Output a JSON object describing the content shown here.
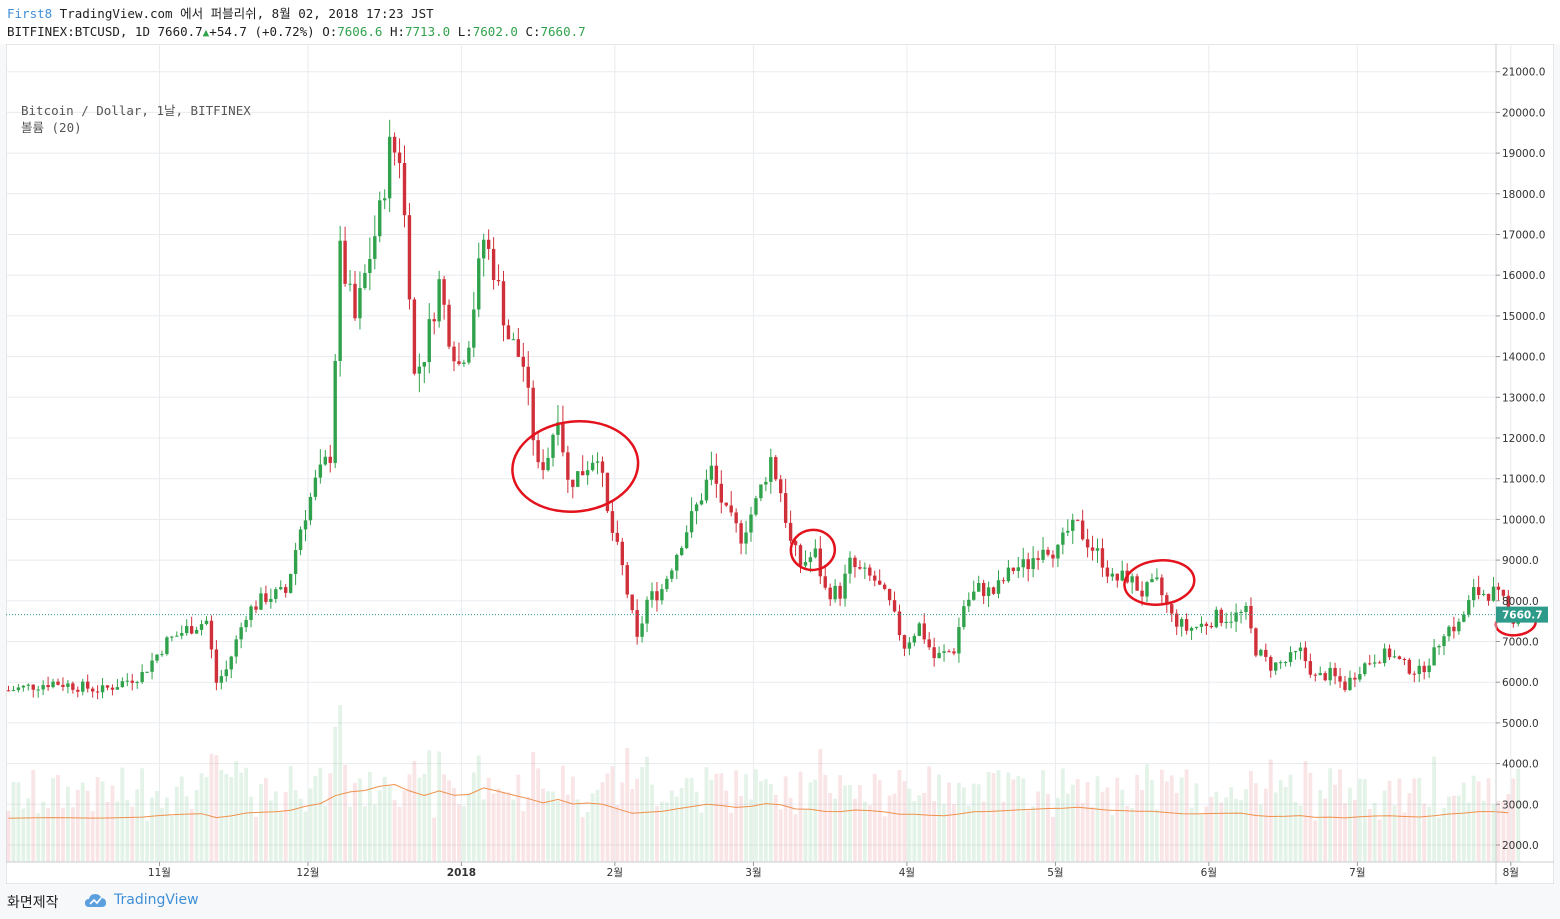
{
  "header": {
    "user": "First8",
    "publish_text": " TradingView.com 에서 퍼블리쉬, 8월 02, 2018 17:23 JST",
    "symbol": "BITFINEX:BTCUSD, 1D 7660.7",
    "change": "+54.7 (+0.72%)",
    "open_label": "O:",
    "open": "7606.6",
    "high_label": "H:",
    "high": "7713.0",
    "low_label": "L:",
    "low": "7602.0",
    "close_label": "C:",
    "close": "7660.7"
  },
  "legend": {
    "series": "Bitcoin / Dollar, 1날, BITFINEX",
    "volume": "볼륨 (20)"
  },
  "footer": {
    "label": "화면제작",
    "brand": "TradingView"
  },
  "colors": {
    "up": "#31a24c",
    "down": "#d0303a",
    "grid": "#e8ecef",
    "ma": "#f0904a",
    "annotation": "#e3121c",
    "price_tag": "#2e9a8a",
    "accent": "#3f8fd8"
  },
  "chart_data": {
    "type": "candlestick",
    "title": "Bitcoin / Dollar, 1날, BITFINEX",
    "ylim": [
      1700,
      21400
    ],
    "y_ticks": [
      21000,
      20000,
      19000,
      18000,
      17000,
      16000,
      15000,
      14000,
      13000,
      12000,
      11000,
      10000,
      9000,
      8000,
      7000,
      6000,
      5000,
      4000,
      3000,
      2000
    ],
    "x_tick_labels": [
      "11월",
      "12월",
      "2018",
      "2월",
      "3월",
      "4월",
      "5월",
      "6월",
      "7월",
      "8월"
    ],
    "x_tick_dates": [
      "2017-11-01",
      "2017-12-01",
      "2018-01-01",
      "2018-02-01",
      "2018-03-01",
      "2018-04-01",
      "2018-05-01",
      "2018-06-01",
      "2018-07-01",
      "2018-08-01"
    ],
    "date_range": [
      "2017-10-01",
      "2018-08-02"
    ],
    "last_price": "7660.7",
    "last_price_value": 7660.7,
    "close_series": [
      [
        "2017-10-01",
        5800
      ],
      [
        "2017-10-10",
        6000
      ],
      [
        "2017-10-20",
        5800
      ],
      [
        "2017-10-28",
        6200
      ],
      [
        "2017-11-02",
        7000
      ],
      [
        "2017-11-06",
        7300
      ],
      [
        "2017-11-10",
        7500
      ],
      [
        "2017-11-12",
        6000
      ],
      [
        "2017-11-14",
        6300
      ],
      [
        "2017-11-18",
        7700
      ],
      [
        "2017-11-22",
        8100
      ],
      [
        "2017-11-26",
        8200
      ],
      [
        "2017-11-29",
        9800
      ],
      [
        "2017-12-02",
        10900
      ],
      [
        "2017-12-05",
        11600
      ],
      [
        "2017-12-07",
        16500
      ],
      [
        "2017-12-10",
        14900
      ],
      [
        "2017-12-13",
        16500
      ],
      [
        "2017-12-15",
        17500
      ],
      [
        "2017-12-17",
        19100
      ],
      [
        "2017-12-19",
        19000
      ],
      [
        "2017-12-21",
        15800
      ],
      [
        "2017-12-22",
        13500
      ],
      [
        "2017-12-24",
        14100
      ],
      [
        "2017-12-27",
        15800
      ],
      [
        "2017-12-29",
        14600
      ],
      [
        "2017-12-31",
        13800
      ],
      [
        "2018-01-02",
        14500
      ],
      [
        "2018-01-05",
        16900
      ],
      [
        "2018-01-07",
        16200
      ],
      [
        "2018-01-10",
        14500
      ],
      [
        "2018-01-13",
        13800
      ],
      [
        "2018-01-16",
        11200
      ],
      [
        "2018-01-18",
        11600
      ],
      [
        "2018-01-20",
        12700
      ],
      [
        "2018-01-22",
        10900
      ],
      [
        "2018-01-25",
        11200
      ],
      [
        "2018-01-28",
        11700
      ],
      [
        "2018-01-30",
        10100
      ],
      [
        "2018-02-02",
        8800
      ],
      [
        "2018-02-05",
        7000
      ],
      [
        "2018-02-07",
        8000
      ],
      [
        "2018-02-10",
        8300
      ],
      [
        "2018-02-14",
        9500
      ],
      [
        "2018-02-17",
        10300
      ],
      [
        "2018-02-20",
        11200
      ],
      [
        "2018-02-23",
        10100
      ],
      [
        "2018-02-26",
        9600
      ],
      [
        "2018-03-01",
        10400
      ],
      [
        "2018-03-04",
        11500
      ],
      [
        "2018-03-06",
        10700
      ],
      [
        "2018-03-08",
        9400
      ],
      [
        "2018-03-10",
        8900
      ],
      [
        "2018-03-13",
        9150
      ],
      [
        "2018-03-15",
        8250
      ],
      [
        "2018-03-18",
        8200
      ],
      [
        "2018-03-20",
        8900
      ],
      [
        "2018-03-22",
        8700
      ],
      [
        "2018-03-25",
        8500
      ],
      [
        "2018-03-28",
        7900
      ],
      [
        "2018-03-31",
        6900
      ],
      [
        "2018-04-03",
        7400
      ],
      [
        "2018-04-06",
        6600
      ],
      [
        "2018-04-10",
        6800
      ],
      [
        "2018-04-12",
        7900
      ],
      [
        "2018-04-15",
        8300
      ],
      [
        "2018-04-18",
        8200
      ],
      [
        "2018-04-22",
        8800
      ],
      [
        "2018-04-25",
        8900
      ],
      [
        "2018-04-28",
        9400
      ],
      [
        "2018-05-01",
        9200
      ],
      [
        "2018-05-03",
        9700
      ],
      [
        "2018-05-05",
        9800
      ],
      [
        "2018-05-08",
        9300
      ],
      [
        "2018-05-10",
        9000
      ],
      [
        "2018-05-12",
        8500
      ],
      [
        "2018-05-15",
        8600
      ],
      [
        "2018-05-18",
        8200
      ],
      [
        "2018-05-21",
        8400
      ],
      [
        "2018-05-24",
        7600
      ],
      [
        "2018-05-27",
        7300
      ],
      [
        "2018-05-30",
        7400
      ],
      [
        "2018-06-02",
        7600
      ],
      [
        "2018-06-05",
        7600
      ],
      [
        "2018-06-08",
        7700
      ],
      [
        "2018-06-10",
        6800
      ],
      [
        "2018-06-13",
        6400
      ],
      [
        "2018-06-16",
        6500
      ],
      [
        "2018-06-19",
        6750
      ],
      [
        "2018-06-22",
        6100
      ],
      [
        "2018-06-25",
        6200
      ],
      [
        "2018-06-28",
        5900
      ],
      [
        "2018-07-01",
        6350
      ],
      [
        "2018-07-04",
        6600
      ],
      [
        "2018-07-07",
        6700
      ],
      [
        "2018-07-10",
        6400
      ],
      [
        "2018-07-13",
        6250
      ],
      [
        "2018-07-16",
        6700
      ],
      [
        "2018-07-18",
        7300
      ],
      [
        "2018-07-21",
        7400
      ],
      [
        "2018-07-24",
        8200
      ],
      [
        "2018-07-26",
        8200
      ],
      [
        "2018-07-28",
        8200
      ],
      [
        "2018-07-30",
        7950
      ],
      [
        "2018-08-01",
        7600
      ],
      [
        "2018-08-02",
        7660
      ]
    ],
    "volume_note": "볼륨 (20)"
  }
}
